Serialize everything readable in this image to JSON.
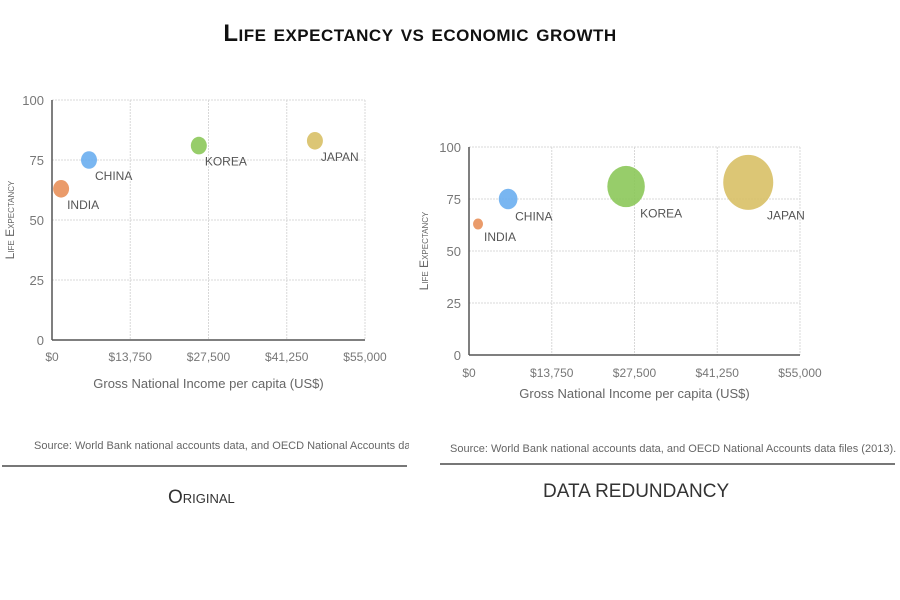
{
  "title": "Life expectancy vs economic growth",
  "chart_data": [
    {
      "type": "scatter",
      "caption": "Original",
      "xlabel": "Gross National Income per capita (US$)",
      "ylabel": "Life Expectancy",
      "xlim": [
        0,
        55000
      ],
      "ylim": [
        0,
        100
      ],
      "x_ticks": [
        "$0",
        "$13,750",
        "$27,500",
        "$41,250",
        "$55,000"
      ],
      "y_ticks": [
        "0",
        "25",
        "50",
        "75",
        "100"
      ],
      "grid": true,
      "points": [
        {
          "label": "INDIA",
          "x": 1600,
          "y": 63,
          "size": 1,
          "color": "#e8905a"
        },
        {
          "label": "CHINA",
          "x": 6500,
          "y": 75,
          "size": 1,
          "color": "#6aaef0"
        },
        {
          "label": "KOREA",
          "x": 25800,
          "y": 81,
          "size": 1,
          "color": "#8cc85a"
        },
        {
          "label": "JAPAN",
          "x": 46200,
          "y": 83,
          "size": 1,
          "color": "#d8c066"
        }
      ],
      "source": "Source: World Bank national accounts data, and OECD National Accounts data file"
    },
    {
      "type": "bubble",
      "caption": "DATA REDUNDANCY",
      "xlabel": "Gross National Income per capita (US$)",
      "ylabel": "Life Expectancy",
      "xlim": [
        0,
        55000
      ],
      "ylim": [
        0,
        100
      ],
      "x_ticks": [
        "$0",
        "$13,750",
        "$27,500",
        "$41,250",
        "$55,000"
      ],
      "y_ticks": [
        "0",
        "25",
        "50",
        "75",
        "100"
      ],
      "grid": true,
      "points": [
        {
          "label": "INDIA",
          "x": 1500,
          "y": 63,
          "size": 1500,
          "color": "#e8905a"
        },
        {
          "label": "CHINA",
          "x": 6500,
          "y": 75,
          "size": 6500,
          "color": "#6aaef0"
        },
        {
          "label": "KOREA",
          "x": 26100,
          "y": 81,
          "size": 26100,
          "color": "#8cc85a"
        },
        {
          "label": "JAPAN",
          "x": 46400,
          "y": 83,
          "size": 46400,
          "color": "#d8c066"
        }
      ],
      "source": "Source: World Bank national accounts data, and OECD National Accounts data files (2013)."
    }
  ]
}
